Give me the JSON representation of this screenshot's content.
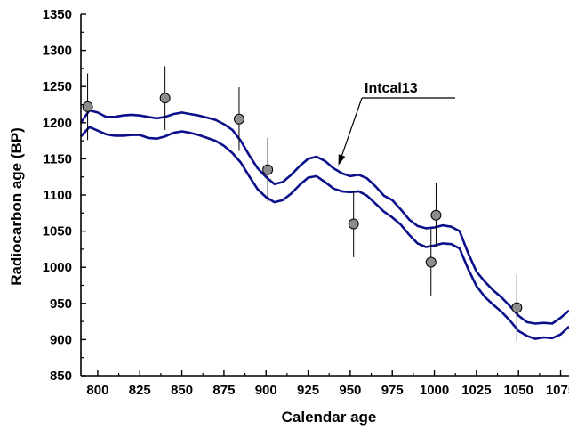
{
  "chart_data": {
    "type": "line",
    "title": "",
    "xlabel": "Calendar age",
    "ylabel": "Radiocarbon age (BP)",
    "xlim": [
      790,
      1080
    ],
    "ylim": [
      850,
      1350
    ],
    "grid": false,
    "x_ticks": [
      800,
      825,
      850,
      875,
      900,
      925,
      950,
      975,
      1000,
      1025,
      1050,
      1075
    ],
    "y_ticks": [
      850,
      900,
      950,
      1000,
      1050,
      1100,
      1150,
      1200,
      1250,
      1300,
      1350
    ],
    "x_tick_labels": [
      "800",
      "825",
      "850",
      "875",
      "900",
      "925",
      "950",
      "975",
      "1000",
      "1025",
      "1050",
      "1075"
    ],
    "y_tick_labels": [
      "850",
      "900",
      "950",
      "1000",
      "1050",
      "1100",
      "1150",
      "1200",
      "1250",
      "1300",
      "1350"
    ],
    "curve_color": "#0c0f8a",
    "marker_color": "#8c8c8c",
    "annotation": {
      "text": "Intcal13",
      "points_to": {
        "x": 944,
        "y": 1135
      }
    },
    "series": [
      {
        "role": "upper-band",
        "x": [
          790,
          795,
          800,
          805,
          810,
          815,
          820,
          825,
          830,
          835,
          840,
          845,
          850,
          855,
          860,
          865,
          870,
          875,
          880,
          885,
          890,
          895,
          900,
          905,
          910,
          915,
          920,
          925,
          930,
          935,
          940,
          945,
          950,
          955,
          960,
          965,
          970,
          975,
          980,
          985,
          990,
          995,
          1000,
          1005,
          1010,
          1015,
          1020,
          1025,
          1030,
          1035,
          1040,
          1045,
          1050,
          1055,
          1060,
          1065,
          1070,
          1075,
          1080
        ],
        "y": [
          1200,
          1217,
          1214,
          1208,
          1208,
          1210,
          1211,
          1210,
          1208,
          1206,
          1208,
          1212,
          1214,
          1212,
          1210,
          1207,
          1204,
          1198,
          1190,
          1175,
          1155,
          1137,
          1125,
          1115,
          1118,
          1128,
          1140,
          1150,
          1153,
          1147,
          1137,
          1130,
          1126,
          1128,
          1123,
          1112,
          1099,
          1093,
          1080,
          1066,
          1057,
          1054,
          1055,
          1058,
          1056,
          1050,
          1020,
          994,
          980,
          968,
          958,
          946,
          933,
          924,
          922,
          923,
          922,
          930,
          940
        ]
      },
      {
        "role": "lower-band",
        "x": [
          790,
          795,
          800,
          805,
          810,
          815,
          820,
          825,
          830,
          835,
          840,
          845,
          850,
          855,
          860,
          865,
          870,
          875,
          880,
          885,
          890,
          895,
          900,
          905,
          910,
          915,
          920,
          925,
          930,
          935,
          940,
          945,
          950,
          955,
          960,
          965,
          970,
          975,
          980,
          985,
          990,
          995,
          1000,
          1005,
          1010,
          1015,
          1020,
          1025,
          1030,
          1035,
          1040,
          1045,
          1050,
          1055,
          1060,
          1065,
          1070,
          1075,
          1080
        ],
        "y": [
          1181,
          1194,
          1189,
          1184,
          1182,
          1182,
          1183,
          1183,
          1179,
          1178,
          1181,
          1186,
          1188,
          1186,
          1183,
          1179,
          1175,
          1168,
          1158,
          1145,
          1126,
          1108,
          1097,
          1090,
          1093,
          1102,
          1114,
          1124,
          1126,
          1118,
          1109,
          1105,
          1104,
          1105,
          1099,
          1088,
          1077,
          1069,
          1059,
          1045,
          1033,
          1028,
          1030,
          1033,
          1032,
          1026,
          998,
          974,
          959,
          948,
          938,
          926,
          912,
          905,
          901,
          903,
          902,
          907,
          918
        ]
      },
      {
        "role": "measurements",
        "x": [
          794,
          840,
          884,
          901,
          952,
          998,
          1001,
          1049
        ],
        "y": [
          1222,
          1234,
          1205,
          1135,
          1060,
          1007,
          1072,
          944
        ],
        "error": [
          46,
          44,
          44,
          44,
          46,
          46,
          44,
          46
        ]
      }
    ]
  }
}
